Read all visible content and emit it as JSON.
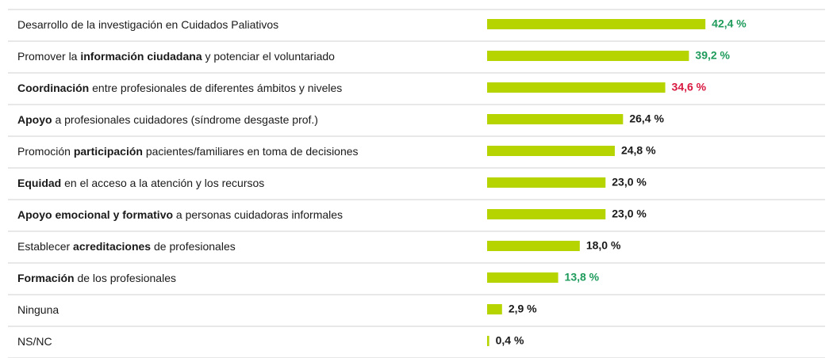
{
  "chart_data": {
    "type": "bar",
    "categories": [
      [
        {
          "text": "Desarrollo de la investigación en Cuidados Paliativos",
          "bold": false
        }
      ],
      [
        {
          "text": "Promover la ",
          "bold": false
        },
        {
          "text": "información ciudadana",
          "bold": true
        },
        {
          "text": " y potenciar el voluntariado",
          "bold": false
        }
      ],
      [
        {
          "text": "Coordinación",
          "bold": true
        },
        {
          "text": " entre profesionales de diferentes ámbitos y niveles",
          "bold": false
        }
      ],
      [
        {
          "text": "Apoyo",
          "bold": true
        },
        {
          "text": " a profesionales cuidadores (síndrome desgaste prof.)",
          "bold": false
        }
      ],
      [
        {
          "text": "Promoción ",
          "bold": false
        },
        {
          "text": "participación",
          "bold": true
        },
        {
          "text": " pacientes/familiares en toma de decisiones",
          "bold": false
        }
      ],
      [
        {
          "text": "Equidad",
          "bold": true
        },
        {
          "text": " en el acceso a la atención y los recursos",
          "bold": false
        }
      ],
      [
        {
          "text": "Apoyo emocional y formativo",
          "bold": true
        },
        {
          "text": " a personas cuidadoras informales",
          "bold": false
        }
      ],
      [
        {
          "text": "Establecer ",
          "bold": false
        },
        {
          "text": "acreditaciones",
          "bold": true
        },
        {
          "text": " de profesionales",
          "bold": false
        }
      ],
      [
        {
          "text": "Formación",
          "bold": true
        },
        {
          "text": " de los profesionales",
          "bold": false
        }
      ],
      [
        {
          "text": "Ninguna",
          "bold": false
        }
      ],
      [
        {
          "text": "NS/NC",
          "bold": false
        }
      ]
    ],
    "values": [
      42.4,
      39.2,
      34.6,
      26.4,
      24.8,
      23.0,
      23.0,
      18.0,
      13.8,
      2.9,
      0.4
    ],
    "value_labels": [
      "42,4 %",
      "39,2 %",
      "34,6 %",
      "26,4 %",
      "24,8 %",
      "23,0 %",
      "23,0 %",
      "18,0 %",
      "13,8 %",
      "2,9 %",
      "0,4 %"
    ],
    "value_label_colors": [
      "#1e9b5b",
      "#1e9b5b",
      "#d8173f",
      "#1a1a1a",
      "#1a1a1a",
      "#1a1a1a",
      "#1a1a1a",
      "#1a1a1a",
      "#1e9b5b",
      "#1a1a1a",
      "#1a1a1a"
    ],
    "color": "#b6d400"
  }
}
